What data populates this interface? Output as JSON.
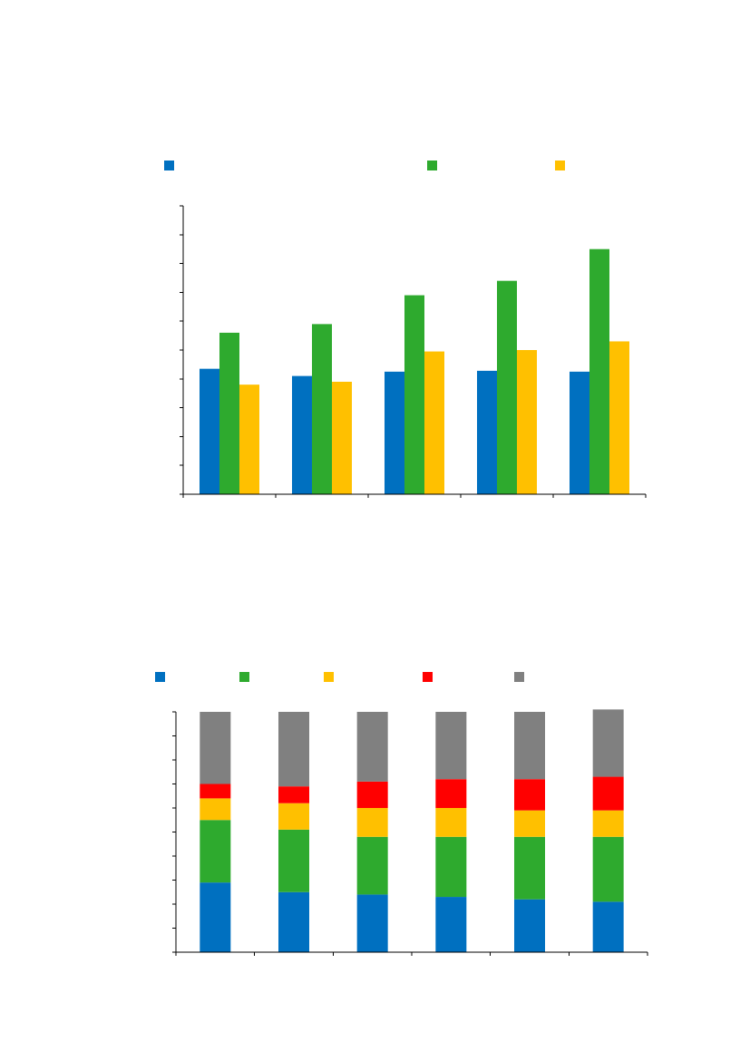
{
  "chart_data": [
    {
      "type": "bar",
      "title": "",
      "xlabel": "",
      "ylabel": "",
      "categories": [
        "",
        "",
        "",
        "",
        ""
      ],
      "ylim": [
        0,
        10
      ],
      "grid": false,
      "legend_position": "top",
      "series": [
        {
          "name": "",
          "color": "#0070C0",
          "values": [
            4.35,
            4.1,
            4.25,
            4.28,
            4.25
          ]
        },
        {
          "name": "",
          "color": "#2EAA2E",
          "values": [
            5.6,
            5.9,
            6.9,
            7.4,
            8.5
          ]
        },
        {
          "name": "",
          "color": "#FFC000",
          "values": [
            3.8,
            3.9,
            4.95,
            5.0,
            5.3
          ]
        }
      ]
    },
    {
      "type": "bar",
      "stacked": true,
      "title": "",
      "xlabel": "",
      "ylabel": "",
      "categories": [
        "",
        "",
        "",
        "",
        "",
        ""
      ],
      "ylim": [
        0,
        100
      ],
      "grid": false,
      "legend_position": "top",
      "series": [
        {
          "name": "",
          "color": "#0070C0",
          "values": [
            29,
            25,
            24,
            23,
            22,
            21
          ]
        },
        {
          "name": "",
          "color": "#2EAA2E",
          "values": [
            26,
            26,
            24,
            25,
            26,
            27
          ]
        },
        {
          "name": "",
          "color": "#FFC000",
          "values": [
            9,
            11,
            12,
            12,
            11,
            11
          ]
        },
        {
          "name": "",
          "color": "#FF0000",
          "values": [
            6,
            7,
            11,
            12,
            13,
            14
          ]
        },
        {
          "name": "",
          "color": "#808080",
          "values": [
            30,
            31,
            29,
            28,
            28,
            28
          ]
        }
      ]
    }
  ]
}
